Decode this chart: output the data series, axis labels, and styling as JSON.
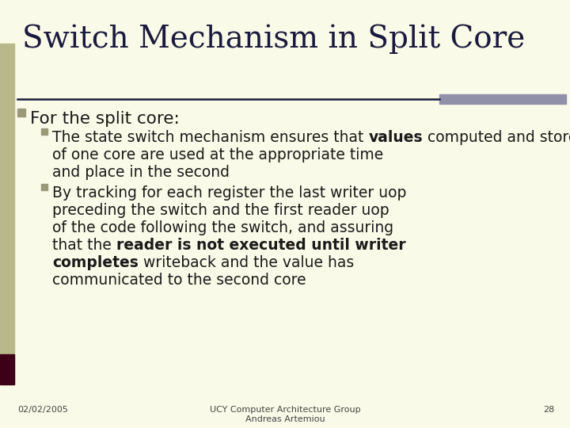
{
  "title": "Switch Mechanism in Split Core",
  "bg_color": "#FAFAE8",
  "title_color": "#1a1a3e",
  "text_color": "#1a1a1a",
  "left_bar_color": "#B8B88A",
  "left_bar_dark": "#3d0018",
  "top_rule_color": "#1a1a3e",
  "top_rule_right_color": "#9090A8",
  "bullet1_color": "#9A9A7A",
  "bullet2_color": "#9A9A7A",
  "footer_date": "02/02/2005",
  "footer_center": "UCY Computer Architecture Group\nAndreas Artemiou",
  "footer_page": "28"
}
